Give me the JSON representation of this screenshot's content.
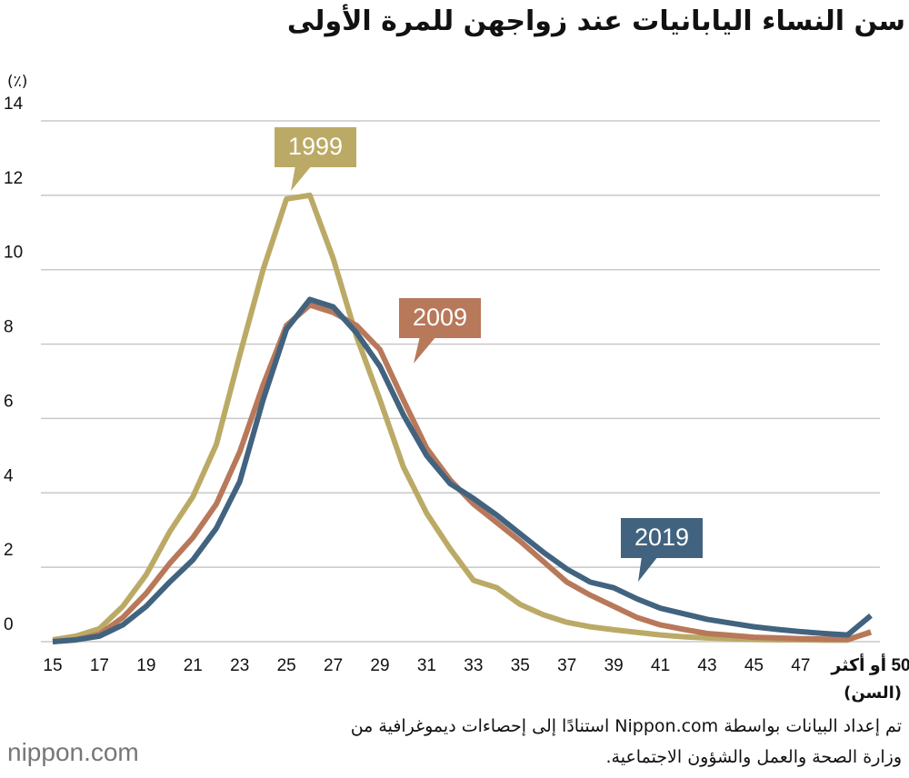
{
  "chart_data": {
    "type": "line",
    "title": "سن النساء اليابانيات عند زواجهن للمرة الأولى",
    "y_label": "(٪)",
    "x_label": "(السن)",
    "source": [
      "تم إعداد البيانات بواسطة Nippon.com استنادًا إلى إحصاءات ديموغرافية من",
      "وزارة الصحة والعمل والشؤون الاجتماعية."
    ],
    "logo": "nippon.com",
    "x": [
      15,
      16,
      17,
      18,
      19,
      20,
      21,
      22,
      23,
      24,
      25,
      26,
      27,
      28,
      29,
      30,
      31,
      32,
      33,
      34,
      35,
      36,
      37,
      38,
      39,
      40,
      41,
      42,
      43,
      44,
      45,
      46,
      47,
      48,
      49,
      50
    ],
    "xlim": [
      15,
      50
    ],
    "xticks": [
      15,
      17,
      19,
      21,
      23,
      25,
      27,
      29,
      31,
      33,
      35,
      37,
      39,
      41,
      43,
      45,
      47,
      {
        "value": 50,
        "label": "50 أو أكثر"
      }
    ],
    "ylim": [
      0,
      14
    ],
    "yticks": [
      0,
      2,
      4,
      6,
      8,
      10,
      12,
      14
    ],
    "grid": true,
    "series": [
      {
        "name": "2019",
        "color": "#41637f",
        "values": [
          0.0,
          0.05,
          0.15,
          0.45,
          0.95,
          1.6,
          2.2,
          3.05,
          4.3,
          6.5,
          8.4,
          9.2,
          9.0,
          8.3,
          7.4,
          6.1,
          5.0,
          4.25,
          3.85,
          3.4,
          2.9,
          2.4,
          1.95,
          1.6,
          1.45,
          1.15,
          0.9,
          0.75,
          0.6,
          0.5,
          0.4,
          0.33,
          0.27,
          0.22,
          0.18,
          0.7
        ]
      },
      {
        "name": "2009",
        "color": "#b8785a",
        "values": [
          0.0,
          0.05,
          0.2,
          0.65,
          1.3,
          2.1,
          2.8,
          3.7,
          5.1,
          6.9,
          8.5,
          9.05,
          8.85,
          8.5,
          7.85,
          6.5,
          5.2,
          4.35,
          3.7,
          3.2,
          2.7,
          2.15,
          1.6,
          1.25,
          0.95,
          0.65,
          0.45,
          0.33,
          0.22,
          0.17,
          0.12,
          0.1,
          0.08,
          0.07,
          0.06,
          0.25
        ]
      },
      {
        "name": "1999",
        "color": "#bbaa66",
        "values": [
          0.05,
          0.15,
          0.35,
          0.95,
          1.8,
          2.95,
          3.9,
          5.3,
          7.7,
          10.0,
          11.9,
          12.0,
          10.3,
          8.2,
          6.5,
          4.7,
          3.45,
          2.5,
          1.65,
          1.45,
          1.0,
          0.72,
          0.52,
          0.4,
          0.32,
          0.25,
          0.18,
          0.13,
          0.1,
          0.08,
          0.06,
          0.05,
          0.05,
          0.04,
          0.04,
          0.27
        ]
      }
    ]
  }
}
